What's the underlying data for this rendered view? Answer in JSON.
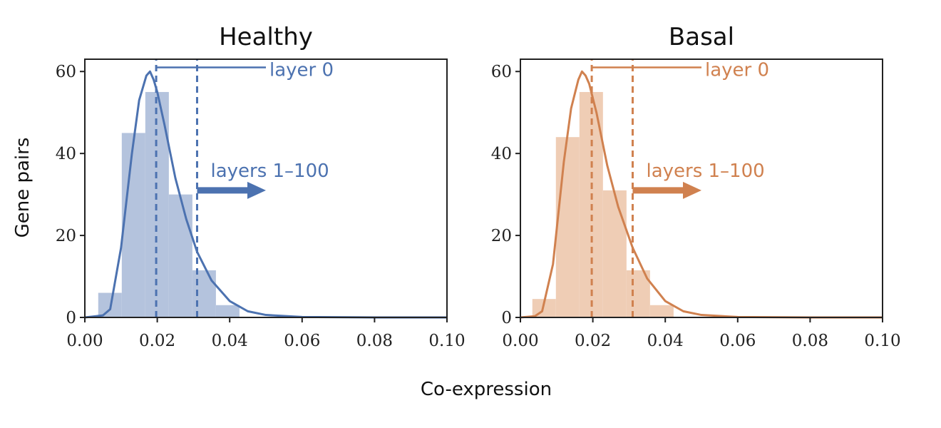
{
  "figure": {
    "xlabel": "Co-expression",
    "ylabel": "Gene pairs"
  },
  "chart_data": [
    {
      "type": "bar",
      "title": "Healthy",
      "color": "#4c72b0",
      "bar_color": "#b4c3dd",
      "xlabel": "Co-expression",
      "ylabel": "Gene pairs",
      "xlim": [
        0.0,
        0.1
      ],
      "ylim": [
        0,
        63
      ],
      "xticks": [
        "0.00",
        "0.02",
        "0.04",
        "0.06",
        "0.08",
        "0.10"
      ],
      "xtick_values": [
        0.0,
        0.02,
        0.04,
        0.06,
        0.08,
        0.1
      ],
      "yticks": [
        "0",
        "20",
        "40",
        "60"
      ],
      "ytick_values": [
        0,
        20,
        40,
        60
      ],
      "histogram": {
        "bin_edges": [
          0.0037,
          0.0102,
          0.0167,
          0.0232,
          0.0297,
          0.0362,
          0.0427
        ],
        "counts": [
          6,
          45,
          55,
          30,
          11.5,
          3
        ]
      },
      "density_curve": {
        "x": [
          0.0,
          0.005,
          0.007,
          0.01,
          0.013,
          0.015,
          0.017,
          0.018,
          0.019,
          0.02,
          0.022,
          0.025,
          0.028,
          0.031,
          0.035,
          0.04,
          0.045,
          0.05,
          0.06,
          0.08,
          0.1
        ],
        "y": [
          0,
          0.5,
          2,
          17,
          40,
          53,
          59,
          60,
          58,
          55,
          47,
          34,
          24,
          16,
          9,
          4,
          1.5,
          0.6,
          0.1,
          0,
          0
        ]
      },
      "vlines": [
        0.0197,
        0.031
      ],
      "annotations": [
        {
          "text": "layer 0",
          "line_y": 61,
          "line_x": [
            0.0197,
            0.05
          ]
        },
        {
          "text": "layers 1–100",
          "arrow_y": 31,
          "arrow_x": [
            0.031,
            0.05
          ]
        }
      ]
    },
    {
      "type": "bar",
      "title": "Basal",
      "color": "#d0814f",
      "bar_color": "#efcdb5",
      "xlabel": "Co-expression",
      "ylabel": "",
      "xlim": [
        0.0,
        0.1
      ],
      "ylim": [
        0,
        63
      ],
      "xticks": [
        "0.00",
        "0.02",
        "0.04",
        "0.06",
        "0.08",
        "0.10"
      ],
      "xtick_values": [
        0.0,
        0.02,
        0.04,
        0.06,
        0.08,
        0.1
      ],
      "yticks": [
        "0",
        "20",
        "40",
        "60"
      ],
      "ytick_values": [
        0,
        20,
        40,
        60
      ],
      "histogram": {
        "bin_edges": [
          0.0033,
          0.0098,
          0.0163,
          0.0228,
          0.0293,
          0.0358,
          0.0423
        ],
        "counts": [
          4.5,
          44,
          55,
          31,
          11.5,
          3
        ]
      },
      "density_curve": {
        "x": [
          0.0,
          0.004,
          0.006,
          0.009,
          0.012,
          0.014,
          0.016,
          0.017,
          0.018,
          0.019,
          0.021,
          0.024,
          0.027,
          0.031,
          0.035,
          0.04,
          0.045,
          0.05,
          0.06,
          0.08,
          0.1
        ],
        "y": [
          0,
          0.3,
          1.5,
          13,
          38,
          51,
          58,
          60,
          59,
          57,
          50,
          37,
          27,
          17,
          9.5,
          4,
          1.5,
          0.6,
          0.1,
          0,
          0
        ]
      },
      "vlines": [
        0.0197,
        0.031
      ],
      "annotations": [
        {
          "text": "layer 0",
          "line_y": 61,
          "line_x": [
            0.0197,
            0.05
          ]
        },
        {
          "text": "layers 1–100",
          "arrow_y": 31,
          "arrow_x": [
            0.031,
            0.05
          ]
        }
      ]
    }
  ]
}
